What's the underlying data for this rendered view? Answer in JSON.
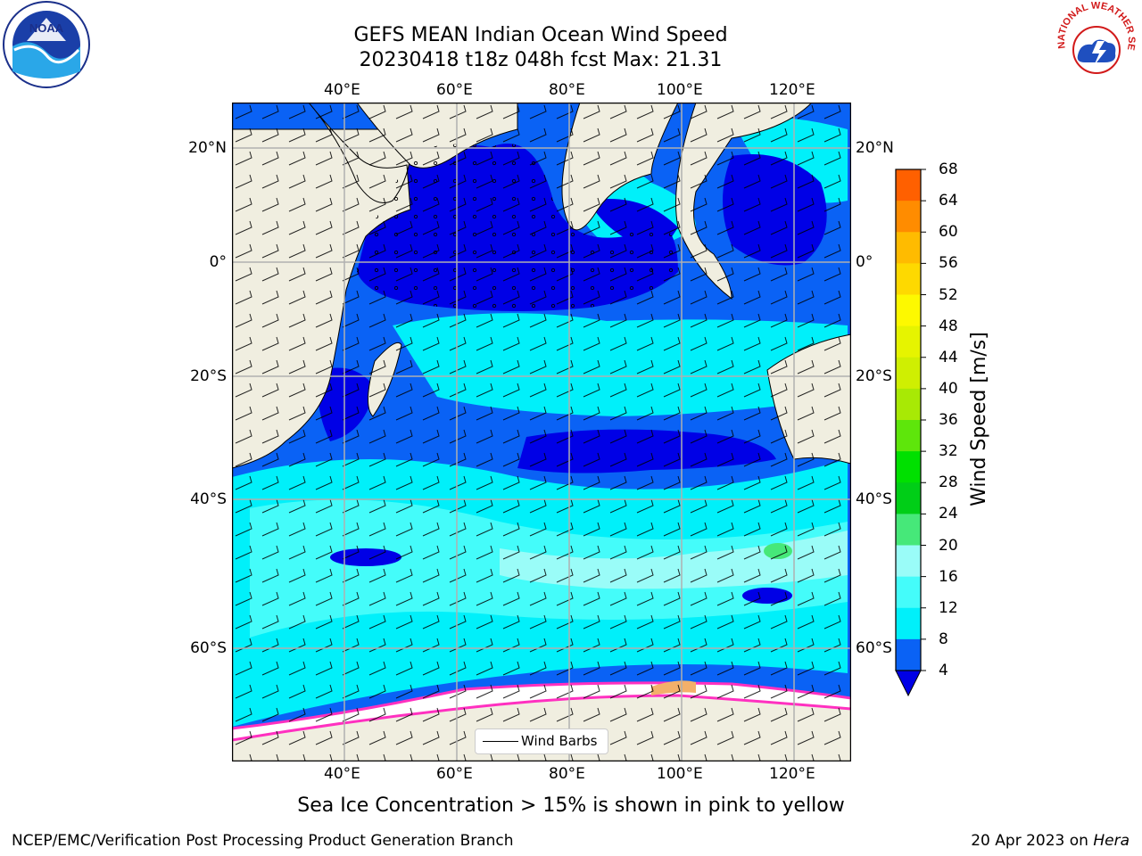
{
  "title": {
    "line1": "GEFS MEAN Indian Ocean Wind Speed",
    "line2": "20230418 t18z 048h fcst   Max: 21.31"
  },
  "axes": {
    "lon_labels": [
      "40°E",
      "60°E",
      "80°E",
      "100°E",
      "120°E"
    ],
    "lat_labels_left": [
      "20°N",
      "0°",
      "20°S",
      "40°S",
      "60°S"
    ],
    "lat_labels_right": [
      "20°N",
      "0°",
      "20°S",
      "40°S",
      "60°S"
    ]
  },
  "legend": {
    "label": "Wind Barbs"
  },
  "colorbar": {
    "label": "Wind Speed [m/s]",
    "ticks": [
      "4",
      "8",
      "12",
      "16",
      "20",
      "24",
      "28",
      "32",
      "36",
      "40",
      "44",
      "48",
      "52",
      "56",
      "60",
      "64",
      "68"
    ],
    "colors": [
      "#0a62f5",
      "#00f0fa",
      "#44fcfa",
      "#9afcf8",
      "#46e879",
      "#00ce17",
      "#00e000",
      "#5ee60b",
      "#a8e905",
      "#cfef02",
      "#e6f400",
      "#fdf900",
      "#fed900",
      "#ffbb00",
      "#ff8c00",
      "#ff6000",
      "#ff3300",
      "#ff0000"
    ],
    "extend_color": "#0000e6"
  },
  "caption": "Sea Ice Concentration > 15% is shown in pink to yellow",
  "footer": {
    "left": "NCEP/EMC/Verification Post Processing Product Generation Branch",
    "right_prefix": "20 Apr 2023 on ",
    "right_host": "Hera"
  },
  "logos": {
    "noaa": "NOAA",
    "nws": "NATIONAL WEATHER SERVICE"
  }
}
